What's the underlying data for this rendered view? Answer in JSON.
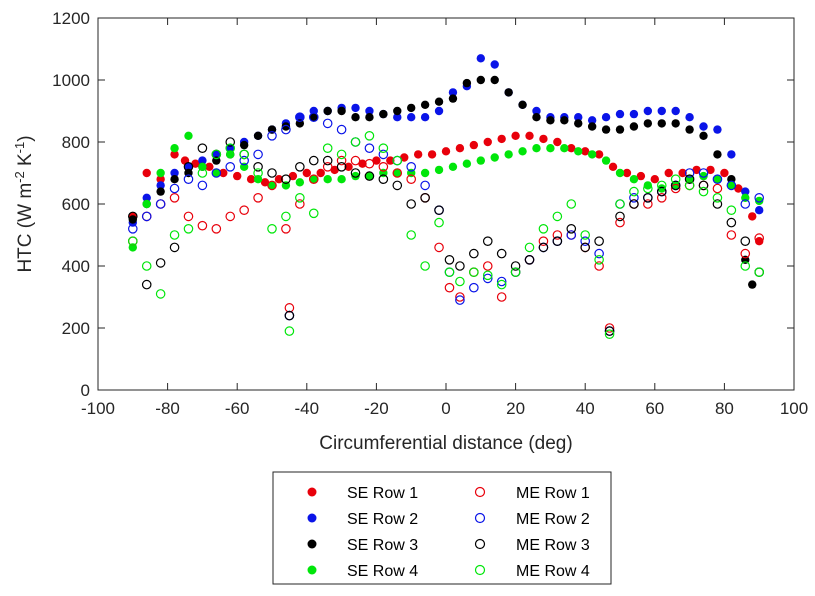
{
  "chart_data": {
    "type": "scatter",
    "xlabel": "Circumferential distance (deg)",
    "ylabel": "HTC (W m^-2 K^-1)",
    "xlim": [
      -100,
      100
    ],
    "ylim": [
      0,
      1200
    ],
    "xticks": [
      -100,
      -80,
      -60,
      -40,
      -20,
      0,
      20,
      40,
      60,
      80,
      100
    ],
    "yticks": [
      0,
      200,
      400,
      600,
      800,
      1000,
      1200
    ],
    "grid": false,
    "legend_position": "bottom",
    "legend_columns": 2,
    "series": [
      {
        "name": "SE Row 1",
        "color": "#e8000b",
        "marker": "filled-circle",
        "x": [
          -90,
          -86,
          -82,
          -78,
          -75,
          -72,
          -68,
          -64,
          -60,
          -56,
          -52,
          -48,
          -44,
          -40,
          -36,
          -32,
          -28,
          -24,
          -20,
          -16,
          -12,
          -8,
          -4,
          0,
          4,
          8,
          12,
          16,
          20,
          24,
          28,
          32,
          36,
          40,
          44,
          48,
          52,
          56,
          60,
          64,
          68,
          72,
          76,
          80,
          84,
          88,
          90
        ],
        "y": [
          560,
          700,
          680,
          760,
          740,
          730,
          720,
          700,
          690,
          680,
          670,
          680,
          690,
          700,
          700,
          710,
          720,
          730,
          740,
          740,
          750,
          760,
          760,
          770,
          780,
          790,
          800,
          810,
          820,
          820,
          810,
          800,
          780,
          770,
          760,
          720,
          700,
          690,
          680,
          700,
          700,
          710,
          710,
          700,
          650,
          560,
          480
        ]
      },
      {
        "name": "SE Row 2",
        "color": "#0a14e8",
        "marker": "filled-circle",
        "x": [
          -90,
          -86,
          -82,
          -78,
          -74,
          -70,
          -66,
          -62,
          -58,
          -54,
          -50,
          -46,
          -42,
          -38,
          -34,
          -30,
          -26,
          -22,
          -18,
          -14,
          -10,
          -6,
          -2,
          2,
          6,
          10,
          14,
          18,
          22,
          26,
          30,
          34,
          38,
          42,
          46,
          50,
          54,
          58,
          62,
          66,
          70,
          74,
          78,
          82,
          86,
          90
        ],
        "y": [
          540,
          620,
          660,
          700,
          720,
          740,
          760,
          780,
          800,
          820,
          840,
          860,
          880,
          900,
          900,
          910,
          910,
          900,
          890,
          880,
          880,
          880,
          900,
          960,
          980,
          1070,
          1050,
          960,
          920,
          900,
          880,
          880,
          880,
          870,
          880,
          890,
          890,
          900,
          900,
          900,
          880,
          850,
          840,
          760,
          640,
          580
        ]
      },
      {
        "name": "SE Row 3",
        "color": "#000000",
        "marker": "filled-circle",
        "x": [
          -90,
          -86,
          -82,
          -78,
          -74,
          -70,
          -66,
          -62,
          -58,
          -54,
          -50,
          -46,
          -42,
          -38,
          -34,
          -30,
          -26,
          -22,
          -18,
          -14,
          -10,
          -6,
          -2,
          2,
          6,
          10,
          14,
          18,
          22,
          26,
          30,
          34,
          38,
          42,
          46,
          50,
          54,
          58,
          62,
          66,
          70,
          74,
          78,
          82,
          86,
          88
        ],
        "y": [
          550,
          600,
          640,
          680,
          700,
          720,
          740,
          760,
          790,
          820,
          840,
          850,
          860,
          880,
          900,
          900,
          880,
          880,
          890,
          900,
          910,
          920,
          930,
          940,
          990,
          1000,
          1000,
          960,
          920,
          880,
          870,
          870,
          860,
          850,
          840,
          840,
          850,
          860,
          860,
          860,
          840,
          820,
          760,
          680,
          420,
          340
        ]
      },
      {
        "name": "SE Row 4",
        "color": "#00e60a",
        "marker": "filled-circle",
        "x": [
          -90,
          -86,
          -82,
          -78,
          -74,
          -70,
          -66,
          -62,
          -58,
          -54,
          -50,
          -46,
          -42,
          -38,
          -34,
          -30,
          -26,
          -22,
          -18,
          -14,
          -10,
          -6,
          -2,
          2,
          6,
          10,
          14,
          18,
          22,
          26,
          30,
          34,
          38,
          42,
          46,
          50,
          54,
          58,
          62,
          66,
          70,
          74,
          78,
          82,
          86,
          90
        ],
        "y": [
          460,
          600,
          700,
          780,
          820,
          720,
          700,
          760,
          720,
          680,
          660,
          660,
          670,
          680,
          680,
          680,
          690,
          690,
          700,
          700,
          700,
          700,
          710,
          720,
          730,
          740,
          750,
          760,
          770,
          780,
          780,
          780,
          770,
          760,
          740,
          700,
          680,
          660,
          650,
          660,
          680,
          690,
          680,
          660,
          620,
          610
        ]
      },
      {
        "name": "ME Row 1",
        "color": "#e8000b",
        "marker": "open-circle",
        "x": [
          -90,
          -86,
          -82,
          -78,
          -74,
          -70,
          -66,
          -62,
          -58,
          -54,
          -50,
          -46,
          -45,
          -42,
          -38,
          -34,
          -30,
          -26,
          -22,
          -18,
          -14,
          -10,
          -6,
          -2,
          1,
          4,
          8,
          12,
          16,
          20,
          24,
          28,
          32,
          36,
          40,
          44,
          47,
          50,
          54,
          58,
          62,
          66,
          70,
          74,
          78,
          82,
          86,
          90
        ],
        "y": [
          480,
          560,
          600,
          620,
          560,
          530,
          520,
          560,
          580,
          620,
          660,
          520,
          265,
          600,
          680,
          720,
          740,
          740,
          730,
          720,
          700,
          680,
          620,
          460,
          330,
          300,
          380,
          400,
          300,
          380,
          420,
          480,
          500,
          500,
          460,
          400,
          200,
          540,
          600,
          600,
          620,
          650,
          660,
          660,
          650,
          500,
          440,
          490
        ]
      },
      {
        "name": "ME Row 2",
        "color": "#0a14e8",
        "marker": "open-circle",
        "x": [
          -90,
          -86,
          -82,
          -78,
          -74,
          -70,
          -66,
          -62,
          -58,
          -54,
          -50,
          -46,
          -45,
          -42,
          -38,
          -34,
          -30,
          -26,
          -22,
          -18,
          -14,
          -10,
          -6,
          -2,
          1,
          4,
          8,
          12,
          16,
          20,
          24,
          28,
          32,
          36,
          40,
          44,
          47,
          50,
          54,
          58,
          62,
          66,
          70,
          74,
          78,
          82,
          86,
          90
        ],
        "y": [
          520,
          560,
          600,
          650,
          680,
          660,
          700,
          720,
          740,
          760,
          820,
          840,
          240,
          880,
          880,
          860,
          840,
          800,
          780,
          760,
          740,
          720,
          660,
          580,
          380,
          290,
          330,
          360,
          350,
          380,
          420,
          460,
          480,
          500,
          480,
          440,
          190,
          600,
          620,
          620,
          640,
          660,
          700,
          700,
          680,
          660,
          600,
          620
        ]
      },
      {
        "name": "ME Row 3",
        "color": "#000000",
        "marker": "open-circle",
        "x": [
          -90,
          -86,
          -82,
          -78,
          -74,
          -70,
          -66,
          -62,
          -58,
          -54,
          -50,
          -46,
          -45,
          -42,
          -38,
          -34,
          -30,
          -26,
          -22,
          -18,
          -14,
          -10,
          -6,
          -2,
          1,
          4,
          8,
          12,
          16,
          20,
          24,
          28,
          32,
          36,
          40,
          44,
          47,
          50,
          54,
          58,
          62,
          66,
          70,
          74,
          78,
          82,
          86,
          90
        ],
        "y": [
          560,
          340,
          410,
          460,
          720,
          780,
          760,
          800,
          760,
          720,
          700,
          680,
          240,
          720,
          740,
          740,
          720,
          700,
          690,
          680,
          660,
          600,
          620,
          580,
          420,
          400,
          440,
          480,
          440,
          400,
          420,
          460,
          480,
          520,
          460,
          480,
          190,
          560,
          600,
          620,
          640,
          660,
          680,
          660,
          600,
          540,
          480,
          380
        ]
      },
      {
        "name": "ME Row 4",
        "color": "#00e60a",
        "marker": "open-circle",
        "x": [
          -90,
          -86,
          -82,
          -78,
          -74,
          -70,
          -66,
          -62,
          -58,
          -54,
          -50,
          -46,
          -45,
          -42,
          -38,
          -34,
          -30,
          -26,
          -22,
          -18,
          -14,
          -10,
          -6,
          -2,
          1,
          4,
          8,
          12,
          16,
          20,
          24,
          28,
          32,
          36,
          40,
          44,
          47,
          50,
          54,
          58,
          62,
          66,
          70,
          74,
          78,
          82,
          86,
          90
        ],
        "y": [
          480,
          400,
          310,
          500,
          520,
          700,
          760,
          780,
          760,
          700,
          520,
          560,
          190,
          620,
          570,
          780,
          760,
          800,
          820,
          780,
          740,
          500,
          400,
          540,
          380,
          350,
          380,
          370,
          340,
          380,
          460,
          520,
          560,
          600,
          500,
          420,
          180,
          600,
          640,
          650,
          660,
          680,
          660,
          640,
          620,
          580,
          400,
          380
        ]
      }
    ]
  }
}
